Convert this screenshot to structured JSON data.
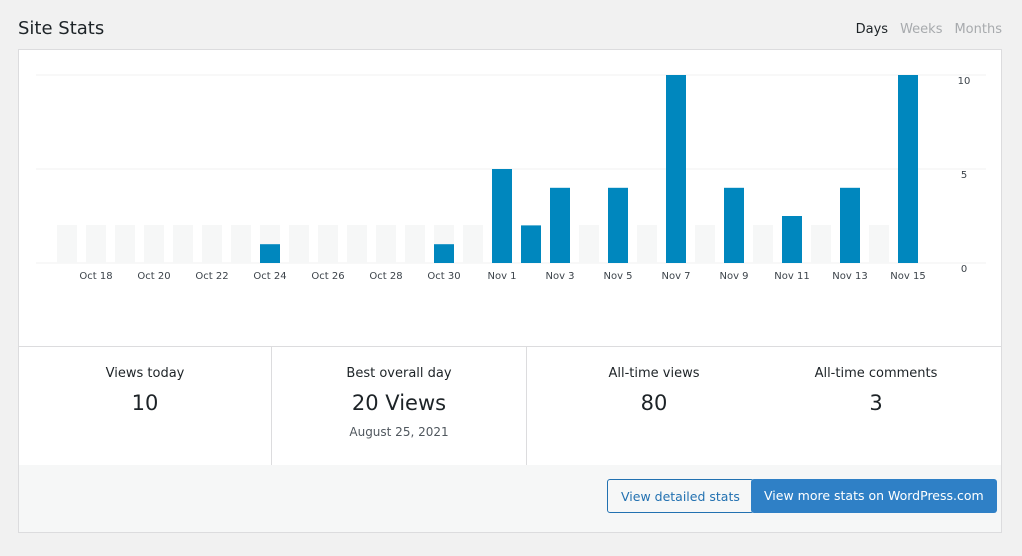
{
  "header": {
    "title": "Site Stats",
    "tabs": [
      "Days",
      "Weeks",
      "Months"
    ]
  },
  "chart_data": {
    "type": "bar",
    "categories": [
      null,
      "Oct 18",
      null,
      "Oct 20",
      null,
      "Oct 22",
      null,
      "Oct 24",
      null,
      "Oct 26",
      null,
      "Oct 28",
      null,
      "Oct 30",
      null,
      "Nov 1",
      null,
      "Nov 3",
      null,
      "Nov 5",
      null,
      "Nov 7",
      null,
      "Nov 9",
      null,
      "Nov 11",
      null,
      "Nov 13",
      null,
      "Nov 15"
    ],
    "values": [
      0,
      0,
      0,
      0,
      0,
      0,
      0,
      1,
      0,
      0,
      0,
      0,
      0,
      1,
      0,
      5,
      2,
      4,
      0,
      4,
      0,
      10,
      0,
      4,
      0,
      2.5,
      0,
      4,
      0,
      10
    ],
    "color": "#0087be",
    "ylim": [
      0,
      10
    ],
    "yticks": [
      0,
      5,
      10
    ],
    "grid": true
  },
  "stats": [
    {
      "label": "Views today",
      "value": "10"
    },
    {
      "label": "Best overall day",
      "value": "20 Views",
      "note": "August 25, 2021"
    },
    {
      "label": "All-time views",
      "value": "80"
    },
    {
      "label": "All-time comments",
      "value": "3"
    }
  ],
  "buttons": [
    "View detailed stats",
    "View more stats on WordPress.com"
  ]
}
